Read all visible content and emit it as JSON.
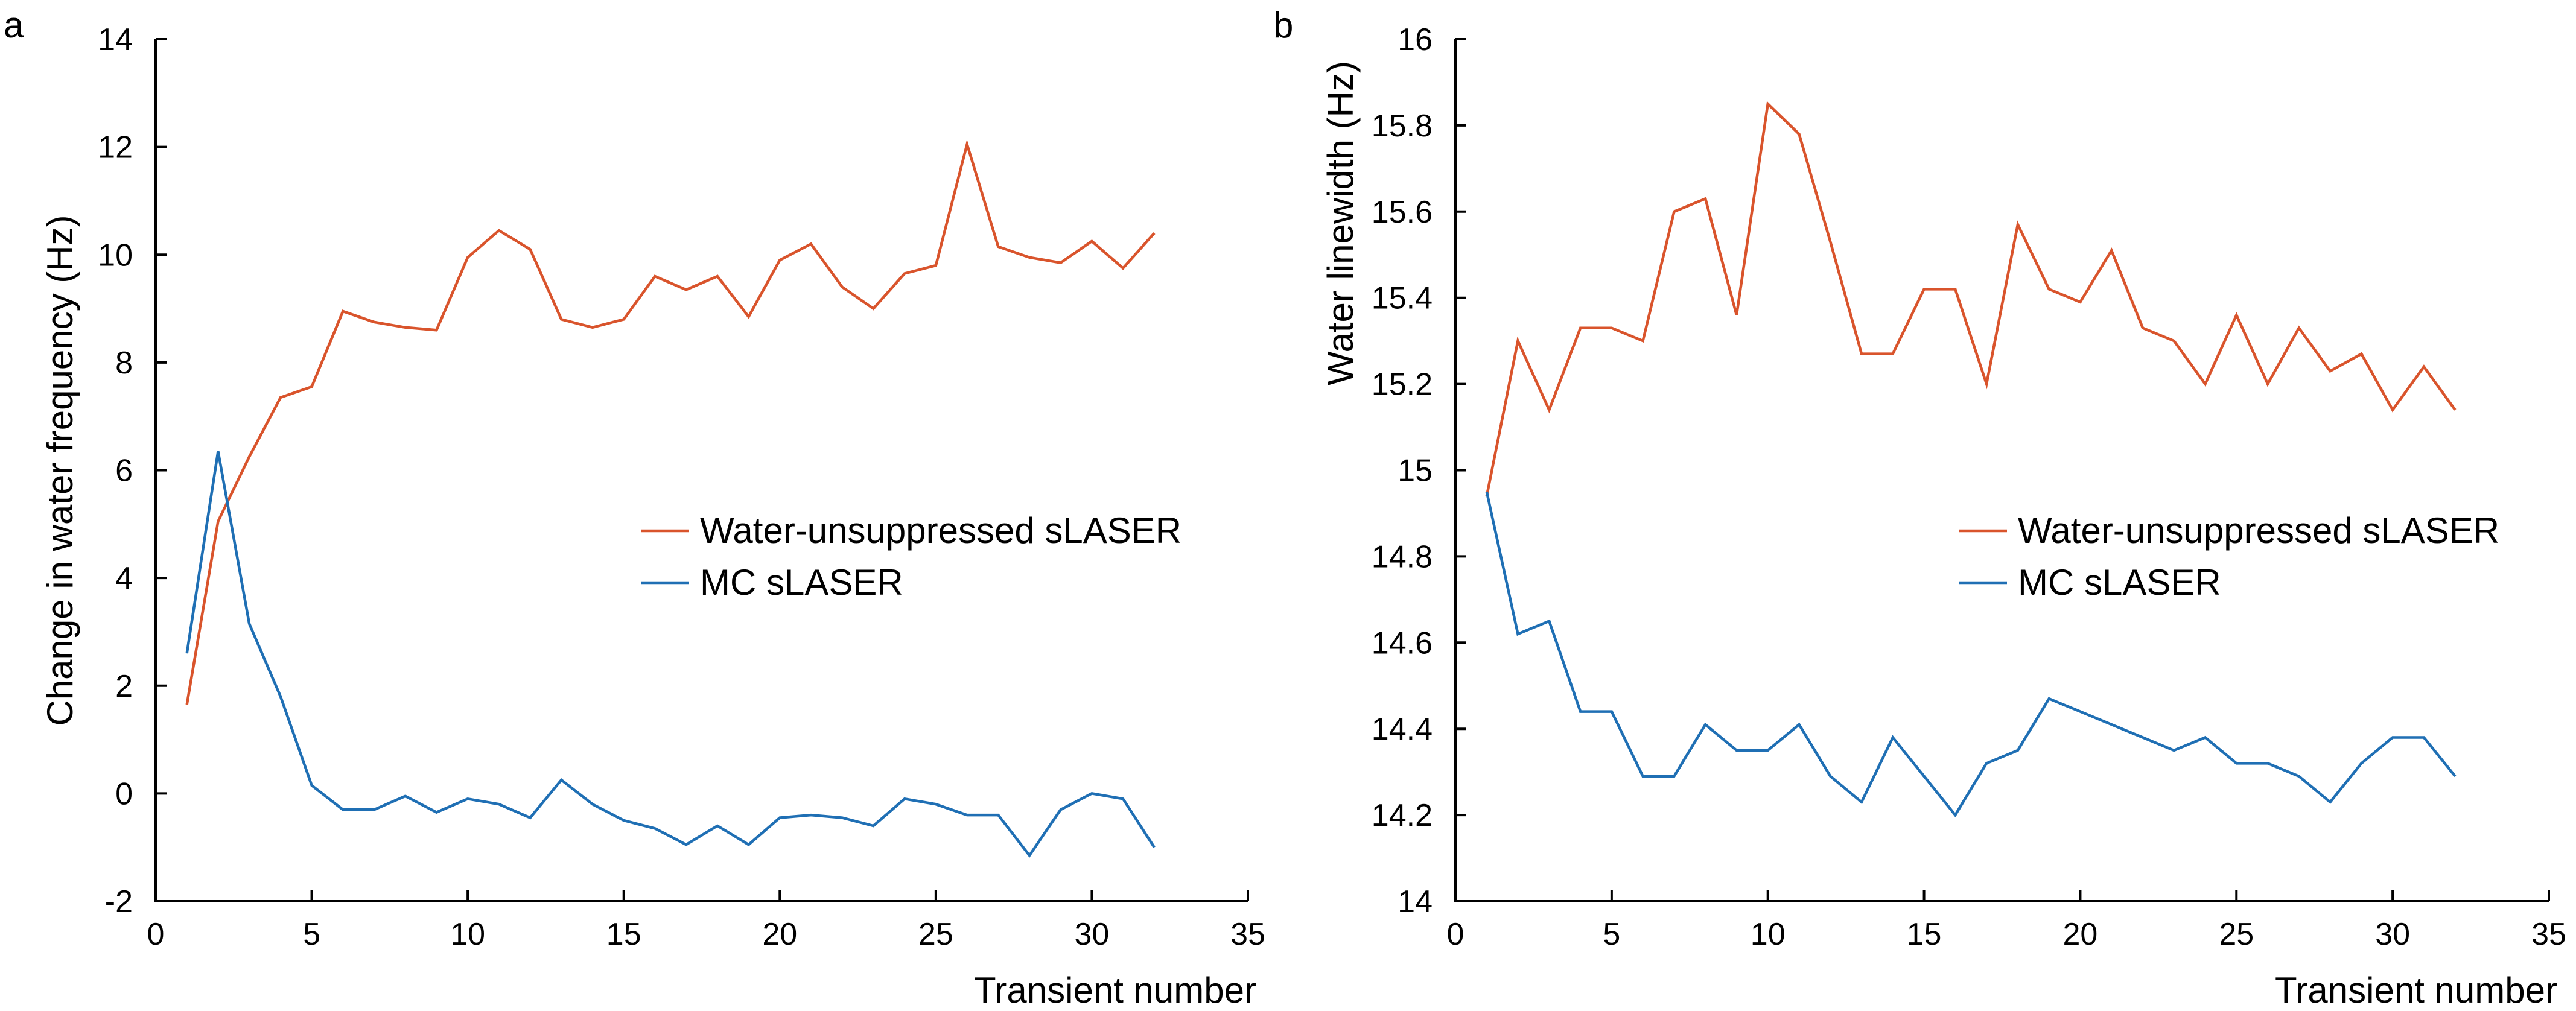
{
  "chart_data": [
    {
      "type": "line",
      "panel_label": "a",
      "title": "",
      "xlabel": "Transient number",
      "ylabel": "Change in water frequency (Hz)",
      "xlim": [
        0,
        35
      ],
      "ylim": [
        -2,
        14
      ],
      "xticks": [
        0,
        5,
        10,
        15,
        20,
        25,
        30,
        35
      ],
      "yticks": [
        -2,
        0,
        2,
        4,
        6,
        8,
        10,
        12,
        14
      ],
      "xtick_labels": [
        "0",
        "5",
        "10",
        "15",
        "20",
        "25",
        "30",
        "35"
      ],
      "ytick_labels": [
        "-2",
        "0",
        "2",
        "4",
        "6",
        "8",
        "10",
        "12",
        "14"
      ],
      "grid": false,
      "legend_position": "center-right",
      "x": [
        1,
        2,
        3,
        4,
        5,
        6,
        7,
        8,
        9,
        10,
        11,
        12,
        13,
        14,
        15,
        16,
        17,
        18,
        19,
        20,
        21,
        22,
        23,
        24,
        25,
        26,
        27,
        28,
        29,
        30,
        31,
        32
      ],
      "series": [
        {
          "name": "Water-unsuppressed sLASER",
          "color": "#d9542c",
          "values": [
            1.65,
            5.05,
            6.25,
            7.35,
            7.55,
            8.95,
            8.75,
            8.65,
            8.6,
            9.95,
            10.45,
            10.1,
            8.8,
            8.65,
            8.8,
            9.6,
            9.35,
            9.6,
            8.85,
            9.9,
            10.2,
            9.4,
            9.0,
            9.65,
            9.8,
            12.05,
            10.15,
            9.95,
            9.85,
            10.25,
            9.75,
            10.4
          ]
        },
        {
          "name": "MC sLASER",
          "color": "#1f6fb4",
          "values": [
            2.6,
            6.35,
            3.15,
            1.8,
            0.15,
            -0.3,
            -0.3,
            -0.05,
            -0.35,
            -0.1,
            -0.2,
            -0.45,
            0.25,
            -0.2,
            -0.5,
            -0.65,
            -0.95,
            -0.6,
            -0.95,
            -0.45,
            -0.4,
            -0.45,
            -0.6,
            -0.1,
            -0.2,
            -0.4,
            -0.4,
            -1.15,
            -0.3,
            0.0,
            -0.1,
            -1.0
          ]
        }
      ]
    },
    {
      "type": "line",
      "panel_label": "b",
      "title": "",
      "xlabel": "Transient number",
      "ylabel": "Water linewidth (Hz)",
      "xlim": [
        0,
        35
      ],
      "ylim": [
        14,
        16
      ],
      "xticks": [
        0,
        5,
        10,
        15,
        20,
        25,
        30,
        35
      ],
      "yticks": [
        14,
        14.2,
        14.4,
        14.6,
        14.8,
        15,
        15.2,
        15.4,
        15.6,
        15.8,
        16
      ],
      "xtick_labels": [
        "0",
        "5",
        "10",
        "15",
        "20",
        "25",
        "30",
        "35"
      ],
      "ytick_labels": [
        "14",
        "14.2",
        "14.4",
        "14.6",
        "14.8",
        "15",
        "15.2",
        "15.4",
        "15.6",
        "15.8",
        "16"
      ],
      "grid": false,
      "legend_position": "center-right",
      "x": [
        1,
        2,
        3,
        4,
        5,
        6,
        7,
        8,
        9,
        10,
        11,
        12,
        13,
        14,
        15,
        16,
        17,
        18,
        19,
        20,
        21,
        22,
        23,
        24,
        25,
        26,
        27,
        28,
        29,
        30,
        31,
        32
      ],
      "series": [
        {
          "name": "Water-unsuppressed sLASER",
          "color": "#d9542c",
          "values": [
            14.94,
            15.3,
            15.14,
            15.33,
            15.33,
            15.3,
            15.6,
            15.63,
            15.36,
            15.85,
            15.78,
            15.53,
            15.27,
            15.27,
            15.42,
            15.42,
            15.2,
            15.57,
            15.42,
            15.39,
            15.51,
            15.33,
            15.3,
            15.2,
            15.36,
            15.2,
            15.33,
            15.23,
            15.27,
            15.14,
            15.24,
            15.14
          ]
        },
        {
          "name": "MC sLASER",
          "color": "#1f6fb4",
          "values": [
            14.95,
            14.62,
            14.65,
            14.44,
            14.44,
            14.29,
            14.29,
            14.41,
            14.35,
            14.35,
            14.41,
            14.29,
            14.23,
            14.38,
            14.29,
            14.2,
            14.32,
            14.35,
            14.47,
            14.44,
            14.41,
            14.38,
            14.35,
            14.38,
            14.32,
            14.32,
            14.29,
            14.23,
            14.32,
            14.38,
            14.38,
            14.29
          ]
        }
      ]
    }
  ]
}
